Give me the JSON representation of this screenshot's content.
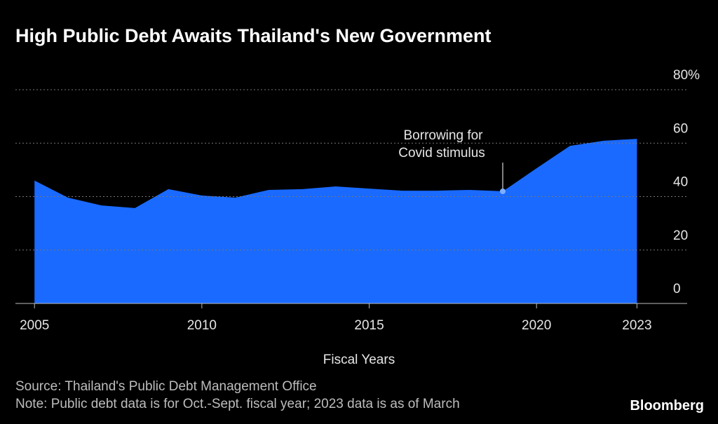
{
  "chart_data": {
    "type": "area",
    "title": "High Public Debt Awaits Thailand's New Government",
    "x_label": "Fiscal Years",
    "source": "Source: Thailand's Public Debt Management Office",
    "note": "Note: Public debt data is for Oct.-Sept. fiscal year; 2023 data is as of March",
    "brand": "Bloomberg",
    "annotation": [
      "Borrowing for",
      "Covid stimulus"
    ],
    "x": [
      2005,
      2006,
      2007,
      2008,
      2009,
      2010,
      2011,
      2012,
      2013,
      2014,
      2015,
      2016,
      2017,
      2018,
      2019,
      2020,
      2021,
      2022,
      2023
    ],
    "series": [
      {
        "name": "Public debt",
        "color": "#1a6aff",
        "values": [
          46,
          39.6,
          36.7,
          35.7,
          42.8,
          40.4,
          39.6,
          42.5,
          42.8,
          43.8,
          43.0,
          42.2,
          42.2,
          42.5,
          42.0,
          50.6,
          59.0,
          60.9,
          61.6
        ]
      }
    ],
    "xlim": [
      2004.43,
      2024.5
    ],
    "xticks": [
      2005,
      2010,
      2015,
      2020,
      2023
    ],
    "ylim": [
      0,
      80
    ],
    "yticks": [
      0,
      20,
      40,
      60,
      {
        "value": 80,
        "label": "80%"
      }
    ],
    "grid": true
  }
}
